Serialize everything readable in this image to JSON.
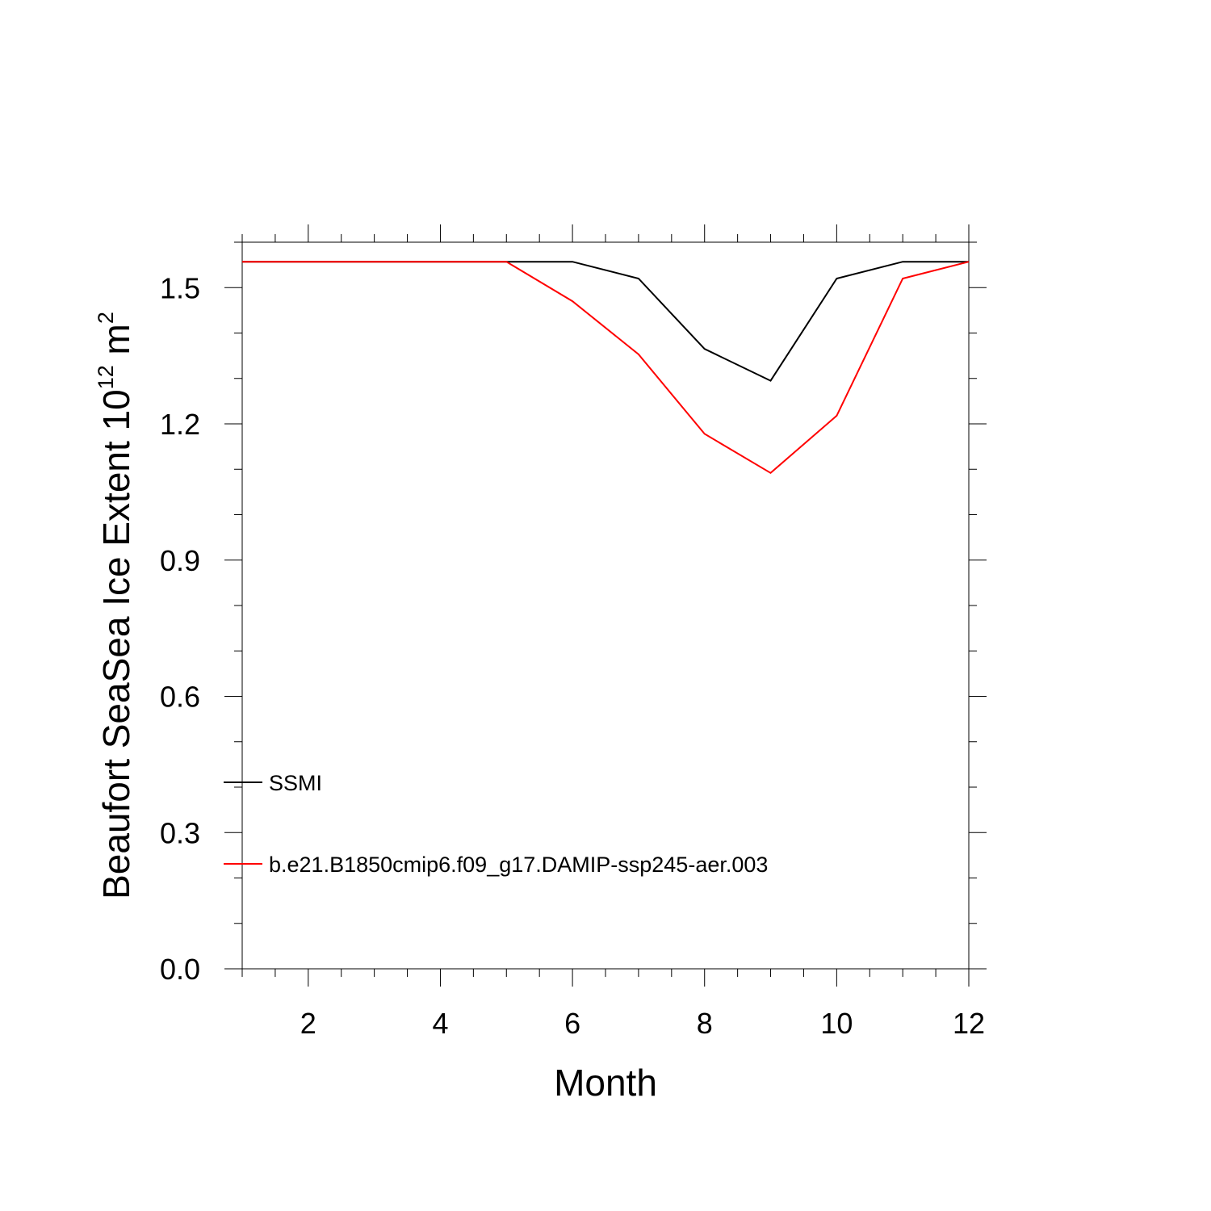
{
  "chart_data": {
    "type": "line",
    "title": "",
    "xlabel": "Month",
    "ylabel": {
      "main": "Beaufort SeaSea Ice Extent 10",
      "sup1": "12",
      "mid": " m",
      "sup2": "2"
    },
    "xlim": [
      1,
      12
    ],
    "ylim": [
      0,
      1.6
    ],
    "x_ticks": [
      2,
      4,
      6,
      8,
      10,
      12
    ],
    "x_tick_labels": [
      "2",
      "4",
      "6",
      "8",
      "10",
      "12"
    ],
    "y_ticks": [
      0,
      0.3,
      0.6,
      0.9,
      1.2,
      1.5
    ],
    "y_tick_labels": [
      "0.0",
      "0.3",
      "0.6",
      "0.9",
      "1.2",
      "1.5"
    ],
    "grid": false,
    "legend_position": "bottom-left",
    "x": [
      1,
      2,
      3,
      4,
      5,
      6,
      7,
      8,
      9,
      10,
      11,
      12
    ],
    "series": [
      {
        "name": "SSMI",
        "color": "#000000",
        "values": [
          1.557,
          1.557,
          1.557,
          1.557,
          1.557,
          1.557,
          1.52,
          1.365,
          1.295,
          1.52,
          1.557,
          1.557
        ]
      },
      {
        "name": "b.e21.B1850cmip6.f09_g17.DAMIP-ssp245-aer.003",
        "color": "#ff0000",
        "values": [
          1.557,
          1.557,
          1.557,
          1.557,
          1.557,
          1.47,
          1.353,
          1.178,
          1.092,
          1.218,
          1.52,
          1.557
        ]
      }
    ]
  }
}
